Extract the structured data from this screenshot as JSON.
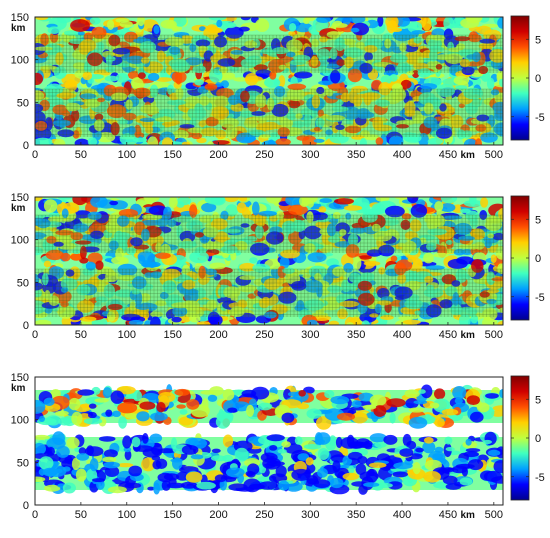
{
  "figure": {
    "panels": [
      {
        "id": "panel-1",
        "x_ticks": [
          "0",
          "50",
          "100",
          "150",
          "200",
          "250",
          "300",
          "350",
          "400",
          "450",
          "500"
        ],
        "y_ticks": [
          "0",
          "50",
          "100",
          "150"
        ],
        "x_unit": "km",
        "y_unit": "km",
        "colorbar_ticks": [
          "5",
          "0",
          "-5"
        ],
        "gridded": true
      },
      {
        "id": "panel-2",
        "x_ticks": [
          "0",
          "50",
          "100",
          "150",
          "200",
          "250",
          "300",
          "350",
          "400",
          "450",
          "500"
        ],
        "y_ticks": [
          "0",
          "50",
          "100",
          "150"
        ],
        "x_unit": "km",
        "y_unit": "km",
        "colorbar_ticks": [
          "5",
          "0",
          "-5"
        ],
        "gridded": true
      },
      {
        "id": "panel-3",
        "x_ticks": [
          "0",
          "50",
          "100",
          "150",
          "200",
          "250",
          "300",
          "350",
          "400",
          "450",
          "500"
        ],
        "y_ticks": [
          "0",
          "50",
          "100",
          "150"
        ],
        "x_unit": "km",
        "y_unit": "km",
        "colorbar_ticks": [
          "5",
          "0",
          "-5"
        ],
        "gridded": false
      }
    ],
    "colormap": [
      "#00008f",
      "#0000ff",
      "#00a0ff",
      "#3fffc0",
      "#c0ff3f",
      "#ffd000",
      "#ff5000",
      "#d00000",
      "#800000"
    ]
  }
}
